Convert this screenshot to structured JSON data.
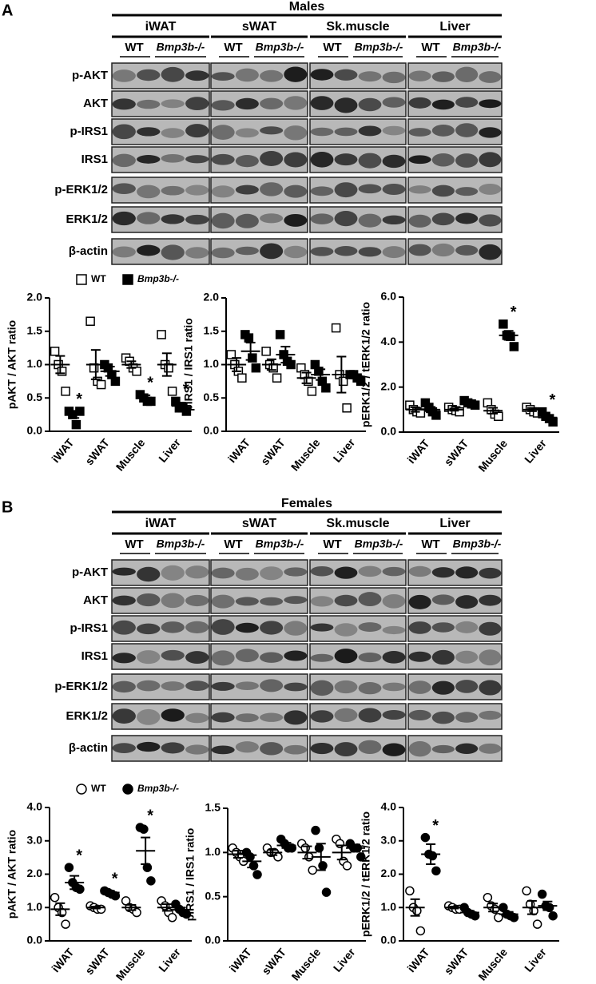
{
  "panels": [
    {
      "label": "A",
      "title": "Males",
      "tissues": [
        "iWAT",
        "sWAT",
        "Sk.muscle",
        "Liver"
      ],
      "genotypes": [
        "WT",
        "Bmp3b-/-"
      ],
      "rows": [
        "p-AKT",
        "AKT",
        "p-IRS1",
        "IRS1",
        "p-ERK1/2",
        "ERK1/2",
        "β-actin"
      ]
    },
    {
      "label": "B",
      "title": "Females",
      "tissues": [
        "iWAT",
        "sWAT",
        "Sk.muscle",
        "Liver"
      ],
      "genotypes": [
        "WT",
        "Bmp3b-/-"
      ],
      "rows": [
        "p-AKT",
        "AKT",
        "p-IRS1",
        "IRS1",
        "p-ERK1/2",
        "ERK1/2",
        "β-actin"
      ]
    }
  ],
  "chart_data": [
    {
      "type": "dot",
      "y_label": "pAKT / AKT ratio",
      "categories": [
        "iWAT",
        "sWAT",
        "Muscle",
        "Liver"
      ],
      "legend": true,
      "marker": "square",
      "ylim": [
        0,
        2
      ],
      "yticks": [
        {
          "value": 0,
          "label": "0.0"
        },
        {
          "value": 0.5,
          "label": "0.5"
        },
        {
          "value": 1,
          "label": "1.0"
        },
        {
          "value": 1.5,
          "label": "1.5"
        },
        {
          "value": 2,
          "label": "2.0"
        }
      ],
      "series": [
        {
          "name": "WT",
          "color": "#000000",
          "filled": false,
          "values": [
            1.0,
            1.0,
            1.0,
            1.0
          ],
          "errors": [
            0.13,
            0.22,
            0.05,
            0.17
          ],
          "points": [
            [
              1.2,
              1.0,
              0.9,
              0.6
            ],
            [
              1.65,
              0.95,
              0.75,
              0.7
            ],
            [
              1.1,
              1.05,
              0.95,
              0.9
            ],
            [
              1.45,
              1.0,
              0.95,
              0.6
            ]
          ],
          "stars": [
            null,
            null,
            null,
            null
          ]
        },
        {
          "name": "Bmp3b-/-",
          "color": "#000000",
          "filled": true,
          "values": [
            0.25,
            0.9,
            0.5,
            0.38
          ],
          "errors": [
            0.05,
            0.07,
            0.04,
            0.05
          ],
          "points": [
            [
              0.3,
              0.25,
              0.1,
              0.3
            ],
            [
              1.0,
              0.95,
              0.85,
              0.75
            ],
            [
              0.55,
              0.5,
              0.45,
              0.45
            ],
            [
              0.45,
              0.35,
              0.35,
              0.3
            ]
          ],
          "stars": [
            "*",
            null,
            "*",
            "*"
          ]
        }
      ]
    },
    {
      "type": "dot",
      "y_label": "pIRS1 / IRS1 ratio",
      "categories": [
        "iWAT",
        "sWAT",
        "Muscle",
        "Liver"
      ],
      "marker": "square",
      "ylim": [
        0,
        2
      ],
      "yticks": [
        {
          "value": 0,
          "label": "0.0"
        },
        {
          "value": 0.5,
          "label": "0.5"
        },
        {
          "value": 1,
          "label": "1.0"
        },
        {
          "value": 1.5,
          "label": "1.5"
        },
        {
          "value": 2,
          "label": "2.0"
        }
      ],
      "series": [
        {
          "color": "#000000",
          "filled": false,
          "values": [
            1.0,
            1.0,
            0.8,
            0.85
          ],
          "errors": [
            0.1,
            0.08,
            0.08,
            0.27
          ],
          "points": [
            [
              1.15,
              1.0,
              0.9,
              0.8
            ],
            [
              1.2,
              1.0,
              0.95,
              0.8
            ],
            [
              0.95,
              0.85,
              0.75,
              0.6
            ],
            [
              1.55,
              0.85,
              0.75,
              0.35
            ]
          ]
        },
        {
          "color": "#000000",
          "filled": true,
          "values": [
            1.2,
            1.15,
            0.85,
            0.82
          ],
          "errors": [
            0.13,
            0.12,
            0.08,
            0.03
          ],
          "points": [
            [
              1.45,
              1.4,
              1.1,
              0.95
            ],
            [
              1.45,
              1.15,
              1.05,
              1.0
            ],
            [
              1.0,
              0.9,
              0.75,
              0.65
            ],
            [
              0.85,
              0.85,
              0.8,
              0.75
            ]
          ]
        }
      ]
    },
    {
      "type": "dot",
      "y_label": "pERK1/2 / tERK1/2 ratio",
      "categories": [
        "iWAT",
        "sWAT",
        "Muscle",
        "Liver"
      ],
      "marker": "square",
      "ylim": [
        0,
        6
      ],
      "yticks": [
        {
          "value": 0,
          "label": "0.0"
        },
        {
          "value": 2,
          "label": "2.0"
        },
        {
          "value": 4,
          "label": "4.0"
        },
        {
          "value": 6,
          "label": "6.0"
        }
      ],
      "series": [
        {
          "color": "#000000",
          "filled": false,
          "values": [
            1.0,
            1.0,
            0.95,
            1.0
          ],
          "errors": [
            0.1,
            0.05,
            0.13,
            0.07
          ],
          "points": [
            [
              1.2,
              1.0,
              0.9,
              0.85
            ],
            [
              1.1,
              1.0,
              0.95,
              0.9
            ],
            [
              1.3,
              1.0,
              0.8,
              0.7
            ],
            [
              1.1,
              1.0,
              0.9,
              0.85
            ]
          ],
          "stars": [
            null,
            null,
            null,
            null
          ]
        },
        {
          "color": "#000000",
          "filled": true,
          "values": [
            1.0,
            1.3,
            4.3,
            0.65
          ],
          "errors": [
            0.12,
            0.05,
            0.2,
            0.1
          ],
          "points": [
            [
              1.3,
              1.1,
              0.9,
              0.75
            ],
            [
              1.4,
              1.3,
              1.25,
              1.2
            ],
            [
              4.8,
              4.3,
              4.25,
              3.8
            ],
            [
              0.9,
              0.7,
              0.6,
              0.45
            ]
          ],
          "stars": [
            null,
            null,
            "*",
            "*"
          ]
        }
      ]
    },
    {
      "type": "dot",
      "y_label": "pAKT / AKT ratio",
      "categories": [
        "iWAT",
        "sWAT",
        "Muscle",
        "Liver"
      ],
      "legend": true,
      "marker": "circle",
      "ylim": [
        0,
        4
      ],
      "yticks": [
        {
          "value": 0,
          "label": "0.0"
        },
        {
          "value": 1,
          "label": "1.0"
        },
        {
          "value": 2,
          "label": "2.0"
        },
        {
          "value": 3,
          "label": "3.0"
        },
        {
          "value": 4,
          "label": "4.0"
        }
      ],
      "series": [
        {
          "name": "WT",
          "color": "#000000",
          "filled": false,
          "values": [
            0.95,
            1.0,
            1.0,
            1.0
          ],
          "errors": [
            0.18,
            0.03,
            0.08,
            0.1
          ],
          "points": [
            [
              1.3,
              1.0,
              0.85,
              0.5
            ],
            [
              1.05,
              1.0,
              0.95,
              0.95
            ],
            [
              1.2,
              1.0,
              0.95,
              0.85
            ],
            [
              1.2,
              1.05,
              0.85,
              0.7
            ]
          ]
        },
        {
          "name": "Bmp3b-/-",
          "color": "#000000",
          "filled": true,
          "values": [
            1.75,
            1.45,
            2.7,
            0.93
          ],
          "errors": [
            0.2,
            0.05,
            0.4,
            0.07
          ],
          "points": [
            [
              2.2,
              1.75,
              1.6,
              1.55
            ],
            [
              1.5,
              1.45,
              1.4,
              1.35
            ],
            [
              3.4,
              3.35,
              2.2,
              1.8
            ],
            [
              1.1,
              0.95,
              0.85,
              0.8
            ]
          ],
          "stars": [
            "*",
            "*",
            "*",
            null
          ]
        }
      ]
    },
    {
      "type": "dot",
      "y_label": "pIRS1 / IRS1 ratio",
      "categories": [
        "iWAT",
        "sWAT",
        "Muscle",
        "Liver"
      ],
      "marker": "circle",
      "ylim": [
        0,
        1.5
      ],
      "yticks": [
        {
          "value": 0,
          "label": "0.0"
        },
        {
          "value": 0.5,
          "label": "0.5"
        },
        {
          "value": 1,
          "label": "1.0"
        },
        {
          "value": 1.5,
          "label": "1.5"
        }
      ],
      "series": [
        {
          "color": "#000000",
          "filled": false,
          "values": [
            0.98,
            1.0,
            1.0,
            1.0
          ],
          "errors": [
            0.04,
            0.03,
            0.07,
            0.08
          ],
          "points": [
            [
              1.05,
              1.0,
              0.95,
              0.9
            ],
            [
              1.05,
              1.0,
              1.0,
              0.95
            ],
            [
              1.1,
              1.05,
              0.95,
              0.8
            ],
            [
              1.15,
              1.1,
              0.9,
              0.85
            ]
          ]
        },
        {
          "color": "#000000",
          "filled": true,
          "values": [
            0.9,
            1.08,
            0.95,
            1.05
          ],
          "errors": [
            0.07,
            0.03,
            0.15,
            0.04
          ],
          "points": [
            [
              1.0,
              0.95,
              0.85,
              0.75
            ],
            [
              1.15,
              1.1,
              1.05,
              1.05
            ],
            [
              1.25,
              1.05,
              0.85,
              0.55
            ],
            [
              1.1,
              1.05,
              1.05,
              0.95
            ]
          ]
        }
      ]
    },
    {
      "type": "dot",
      "y_label": "pERK1/2 / tERK1/2 ratio",
      "categories": [
        "iWAT",
        "sWAT",
        "Muscle",
        "Liver"
      ],
      "marker": "circle",
      "ylim": [
        0,
        4
      ],
      "yticks": [
        {
          "value": 0,
          "label": "0.0"
        },
        {
          "value": 1,
          "label": "1.0"
        },
        {
          "value": 2,
          "label": "2.0"
        },
        {
          "value": 3,
          "label": "3.0"
        },
        {
          "value": 4,
          "label": "4.0"
        }
      ],
      "series": [
        {
          "color": "#000000",
          "filled": false,
          "values": [
            1.0,
            1.0,
            1.0,
            1.0
          ],
          "errors": [
            0.25,
            0.03,
            0.12,
            0.2
          ],
          "points": [
            [
              1.5,
              1.0,
              0.9,
              0.3
            ],
            [
              1.05,
              1.0,
              0.95,
              0.95
            ],
            [
              1.3,
              1.05,
              0.95,
              0.7
            ],
            [
              1.5,
              1.1,
              0.9,
              0.5
            ]
          ]
        },
        {
          "color": "#000000",
          "filled": true,
          "values": [
            2.6,
            0.85,
            0.8,
            1.05
          ],
          "errors": [
            0.3,
            0.05,
            0.07,
            0.13
          ],
          "points": [
            [
              3.1,
              2.6,
              2.55,
              2.1
            ],
            [
              1.0,
              0.85,
              0.8,
              0.75
            ],
            [
              1.0,
              0.8,
              0.75,
              0.7
            ],
            [
              1.4,
              1.05,
              1.0,
              0.75
            ]
          ],
          "stars": [
            "*",
            null,
            null,
            null
          ]
        }
      ]
    }
  ]
}
